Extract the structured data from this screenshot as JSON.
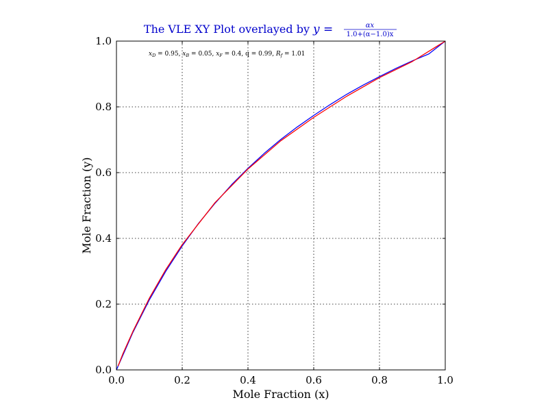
{
  "chart_data": {
    "type": "line",
    "title_text": "The VLE XY Plot overlayed by",
    "title_equation": {
      "lhs": "y =",
      "numerator": "αx",
      "denominator": "1.0+(α−1.0)x"
    },
    "annotation": {
      "xd_sym": "x",
      "xd_sub": "D",
      "xd_val": " = 0.95, ",
      "xb_sym": "x",
      "xb_sub": "B",
      "xb_val": " = 0.05, ",
      "xf_sym": "x",
      "xf_sub": "F",
      "xf_val": " = 0.4, ",
      "q_text": "q = 0.99, ",
      "rf_sym": "R",
      "rf_sub": "f",
      "rf_val": " = 1.01"
    },
    "xlabel": "Mole Fraction (x)",
    "ylabel": "Mole Fraction (y)",
    "xlim": [
      0.0,
      1.0
    ],
    "ylim": [
      0.0,
      1.0
    ],
    "xticks": [
      "0.0",
      "0.2",
      "0.4",
      "0.6",
      "0.8",
      "1.0"
    ],
    "yticks": [
      "0.0",
      "0.2",
      "0.4",
      "0.6",
      "0.8",
      "1.0"
    ],
    "grid": true,
    "series": [
      {
        "color": "#0000ff",
        "x": [
          0.0,
          0.05,
          0.1,
          0.15,
          0.2,
          0.25,
          0.3,
          0.35,
          0.4,
          0.45,
          0.5,
          0.55,
          0.6,
          0.65,
          0.7,
          0.75,
          0.8,
          0.85,
          0.9,
          0.95,
          1.0
        ],
        "y": [
          0.0,
          0.114,
          0.213,
          0.3,
          0.377,
          0.446,
          0.507,
          0.563,
          0.613,
          0.659,
          0.701,
          0.739,
          0.774,
          0.807,
          0.838,
          0.866,
          0.892,
          0.917,
          0.94,
          0.961,
          1.0
        ]
      },
      {
        "color": "#ff0000",
        "x": [
          0.005,
          0.02,
          0.05,
          0.1,
          0.15,
          0.2,
          0.3,
          0.4,
          0.5,
          0.6,
          0.7,
          0.8,
          0.9,
          1.0
        ],
        "y": [
          0.012,
          0.05,
          0.117,
          0.218,
          0.305,
          0.381,
          0.509,
          0.611,
          0.697,
          0.768,
          0.832,
          0.889,
          0.938,
          1.0
        ]
      }
    ]
  }
}
